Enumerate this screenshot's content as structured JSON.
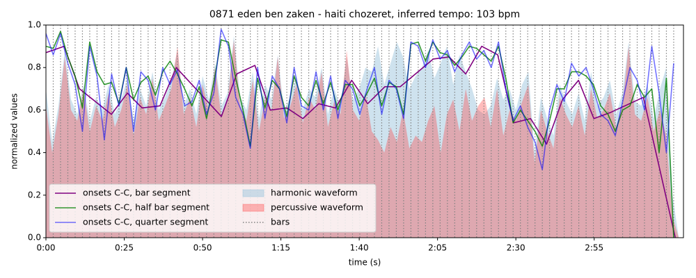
{
  "chart_data": {
    "type": "line",
    "title": "0871 eden ben zaken - haiti chozeret, inferred tempo: 103 bpm",
    "xlabel": "time (s)",
    "ylabel": "normalized values",
    "xlim": [
      0,
      203.5
    ],
    "ylim": [
      0,
      1
    ],
    "xticks": [
      {
        "value": 0,
        "label": "0:00"
      },
      {
        "value": 25,
        "label": "0:25"
      },
      {
        "value": 50,
        "label": "0:50"
      },
      {
        "value": 75,
        "label": "1:15"
      },
      {
        "value": 100,
        "label": "1:40"
      },
      {
        "value": 125,
        "label": "2:05"
      },
      {
        "value": 150,
        "label": "2:30"
      },
      {
        "value": 175,
        "label": "2:55"
      }
    ],
    "yticks": [
      {
        "value": 0,
        "label": "0.0"
      },
      0.2,
      0.4,
      0.6,
      0.8,
      {
        "value": 1,
        "label": "1.0"
      }
    ],
    "legend": "lower left",
    "x": [
      0,
      2.33,
      4.66,
      6.99,
      9.32,
      11.65,
      13.98,
      16.31,
      18.64,
      20.97,
      23.3,
      25.63,
      27.96,
      30.29,
      32.62,
      34.95,
      37.28,
      39.61,
      41.94,
      44.27,
      46.6,
      48.93,
      51.26,
      53.59,
      55.92,
      58.25,
      60.58,
      62.91,
      65.24,
      67.57,
      69.9,
      72.23,
      74.56,
      76.89,
      79.22,
      81.55,
      83.88,
      86.21,
      88.54,
      90.87,
      93.2,
      95.53,
      97.86,
      100.19,
      102.52,
      104.85,
      107.18,
      109.51,
      111.84,
      114.17,
      116.5,
      118.83,
      121.16,
      123.49,
      125.82,
      128.15,
      130.48,
      132.81,
      135.14,
      137.47,
      139.8,
      142.13,
      144.46,
      146.79,
      149.12,
      151.45,
      153.78,
      156.11,
      158.44,
      160.77,
      163.1,
      165.43,
      167.76,
      170.09,
      172.42,
      174.75,
      177.08,
      179.41,
      181.74,
      184.07,
      186.4,
      188.73,
      191.06,
      193.39,
      195.72,
      198.05,
      200.38
    ],
    "series": [
      {
        "name": "onsets C-C, bar segment",
        "type": "line",
        "color": "#800080",
        "opacity": 1,
        "x": [
          0,
          5.8,
          10.7,
          20.9,
          26,
          30.7,
          36.4,
          41.6,
          56,
          60.9,
          66.7,
          71.6,
          76.9,
          82,
          87.1,
          92.4,
          97.6,
          102.7,
          108.2,
          113.1,
          123.6,
          128.7,
          134,
          139.1,
          144.2,
          149.3,
          154.7,
          159.8,
          164.9,
          170,
          174.9,
          180.4,
          190.7,
          200.9
        ],
        "values": [
          0.87,
          0.9,
          0.7,
          0.58,
          0.68,
          0.61,
          0.62,
          0.8,
          0.57,
          0.77,
          0.81,
          0.6,
          0.61,
          0.56,
          0.63,
          0.61,
          0.74,
          0.63,
          0.71,
          0.71,
          0.84,
          0.85,
          0.77,
          0.9,
          0.86,
          0.54,
          0.56,
          0.44,
          0.65,
          0.74,
          0.56,
          0.59,
          0.66,
          0.0
        ]
      },
      {
        "name": "onsets C-C, half bar segment",
        "type": "line",
        "color": "#008000",
        "opacity": 0.8,
        "values": [
          0.9,
          0.89,
          0.97,
          0.85,
          0.76,
          0.61,
          0.92,
          0.78,
          0.72,
          0.73,
          0.63,
          0.8,
          0.65,
          0.73,
          0.76,
          0.67,
          0.78,
          0.83,
          0.77,
          0.7,
          0.62,
          0.71,
          0.56,
          0.73,
          0.93,
          0.92,
          0.75,
          0.6,
          0.43,
          0.75,
          0.61,
          0.74,
          0.7,
          0.57,
          0.76,
          0.66,
          0.62,
          0.74,
          0.63,
          0.73,
          0.6,
          0.72,
          0.72,
          0.62,
          0.68,
          0.75,
          0.62,
          0.73,
          0.71,
          0.58,
          0.91,
          0.92,
          0.83,
          0.92,
          0.87,
          0.86,
          0.81,
          0.85,
          0.9,
          0.89,
          0.86,
          0.83,
          0.9,
          0.75,
          0.54,
          0.6,
          0.55,
          0.5,
          0.43,
          0.55,
          0.7,
          0.7,
          0.78,
          0.78,
          0.76,
          0.72,
          0.62,
          0.58,
          0.5,
          0.6,
          0.62,
          0.72,
          0.66,
          0.7,
          0.4,
          0.75,
          0.0
        ]
      },
      {
        "name": "onsets C-C, quarter segment",
        "type": "line",
        "color": "#0000ff",
        "opacity": 0.55,
        "values": [
          0.96,
          0.86,
          0.96,
          0.82,
          0.72,
          0.5,
          0.9,
          0.76,
          0.46,
          0.77,
          0.62,
          0.8,
          0.5,
          0.78,
          0.74,
          0.6,
          0.8,
          0.72,
          0.79,
          0.62,
          0.64,
          0.74,
          0.58,
          0.68,
          0.98,
          0.9,
          0.66,
          0.58,
          0.42,
          0.8,
          0.56,
          0.76,
          0.7,
          0.54,
          0.8,
          0.62,
          0.6,
          0.78,
          0.6,
          0.76,
          0.56,
          0.74,
          0.7,
          0.58,
          0.7,
          0.8,
          0.58,
          0.74,
          0.7,
          0.56,
          0.92,
          0.9,
          0.8,
          0.93,
          0.84,
          0.88,
          0.78,
          0.86,
          0.92,
          0.84,
          0.88,
          0.8,
          0.92,
          0.7,
          0.55,
          0.62,
          0.52,
          0.45,
          0.32,
          0.6,
          0.72,
          0.64,
          0.82,
          0.76,
          0.8,
          0.7,
          0.58,
          0.55,
          0.48,
          0.64,
          0.8,
          0.74,
          0.6,
          0.9,
          0.68,
          0.4,
          0.82
        ]
      },
      {
        "name": "harmonic waveform",
        "type": "area",
        "color": "#9ec6de",
        "opacity": 0.5,
        "x": [
          0,
          2,
          4,
          6,
          8,
          10,
          12,
          14,
          16,
          18,
          20,
          22,
          24,
          26,
          28,
          30,
          32,
          34,
          36,
          38,
          40,
          42,
          44,
          46,
          48,
          50,
          52,
          54,
          56,
          58,
          60,
          62,
          64,
          66,
          68,
          70,
          72,
          74,
          76,
          78,
          80,
          82,
          84,
          86,
          88,
          90,
          92,
          94,
          96,
          98,
          100,
          102,
          104,
          106,
          108,
          110,
          112,
          114,
          116,
          118,
          120,
          122,
          124,
          126,
          128,
          130,
          132,
          134,
          136,
          138,
          140,
          142,
          144,
          146,
          148,
          150,
          152,
          154,
          156,
          158,
          160,
          162,
          164,
          166,
          168,
          170,
          172,
          174,
          176,
          178,
          180,
          182,
          184,
          186,
          188,
          190,
          192,
          194,
          196,
          198,
          200,
          202
        ],
        "values": [
          0.7,
          0.45,
          0.62,
          0.88,
          0.65,
          0.58,
          0.72,
          0.55,
          0.66,
          0.6,
          0.72,
          0.58,
          0.65,
          0.75,
          0.55,
          0.7,
          0.62,
          0.78,
          0.6,
          0.66,
          0.74,
          0.88,
          0.62,
          0.7,
          0.58,
          0.76,
          0.65,
          0.82,
          0.62,
          0.68,
          0.95,
          0.66,
          0.6,
          0.78,
          0.56,
          0.72,
          0.65,
          0.86,
          0.6,
          0.66,
          0.76,
          0.6,
          0.7,
          0.66,
          0.8,
          0.58,
          0.7,
          0.62,
          0.85,
          0.65,
          0.7,
          0.8,
          0.78,
          0.9,
          0.72,
          0.82,
          0.92,
          0.85,
          0.7,
          0.76,
          0.8,
          0.88,
          0.75,
          0.82,
          0.9,
          0.72,
          0.86,
          0.78,
          0.7,
          0.6,
          0.58,
          0.62,
          0.75,
          0.65,
          0.7,
          0.6,
          0.72,
          0.78,
          0.4,
          0.66,
          0.56,
          0.48,
          0.72,
          0.64,
          0.58,
          0.68,
          0.55,
          0.78,
          0.62,
          0.66,
          0.74,
          0.58,
          0.68,
          0.92,
          0.64,
          0.62,
          0.72,
          0.56,
          0.7,
          0.8,
          0.2,
          0.0
        ]
      },
      {
        "name": "percussive waveform",
        "type": "area",
        "color": "#ff3030",
        "opacity": 0.32,
        "x": [
          0,
          2,
          4,
          6,
          8,
          10,
          12,
          14,
          16,
          18,
          20,
          22,
          24,
          26,
          28,
          30,
          32,
          34,
          36,
          38,
          40,
          42,
          44,
          46,
          48,
          50,
          52,
          54,
          56,
          58,
          60,
          62,
          64,
          66,
          68,
          70,
          72,
          74,
          76,
          78,
          80,
          82,
          84,
          86,
          88,
          90,
          92,
          94,
          96,
          98,
          100,
          102,
          104,
          106,
          108,
          110,
          112,
          114,
          116,
          118,
          120,
          122,
          124,
          126,
          128,
          130,
          132,
          134,
          136,
          138,
          140,
          142,
          144,
          146,
          148,
          150,
          152,
          154,
          156,
          158,
          160,
          162,
          164,
          166,
          168,
          170,
          172,
          174,
          176,
          178,
          180,
          182,
          184,
          186,
          188,
          190,
          192,
          194,
          196,
          198,
          200,
          202
        ],
        "values": [
          0.62,
          0.4,
          0.58,
          0.85,
          0.6,
          0.55,
          0.7,
          0.5,
          0.62,
          0.55,
          0.68,
          0.52,
          0.6,
          0.72,
          0.48,
          0.66,
          0.58,
          0.75,
          0.55,
          0.62,
          0.7,
          0.9,
          0.58,
          0.66,
          0.52,
          0.72,
          0.6,
          0.8,
          0.57,
          0.64,
          0.93,
          0.62,
          0.55,
          0.74,
          0.5,
          0.66,
          0.6,
          0.85,
          0.56,
          0.62,
          0.72,
          0.54,
          0.66,
          0.6,
          0.78,
          0.52,
          0.64,
          0.58,
          0.88,
          0.6,
          0.55,
          0.68,
          0.5,
          0.46,
          0.4,
          0.52,
          0.45,
          0.6,
          0.42,
          0.48,
          0.45,
          0.55,
          0.62,
          0.4,
          0.58,
          0.65,
          0.5,
          0.7,
          0.55,
          0.62,
          0.66,
          0.52,
          0.7,
          0.48,
          0.6,
          0.55,
          0.64,
          0.72,
          0.35,
          0.6,
          0.5,
          0.42,
          0.66,
          0.58,
          0.52,
          0.62,
          0.48,
          0.7,
          0.56,
          0.6,
          0.68,
          0.52,
          0.62,
          0.9,
          0.58,
          0.55,
          0.66,
          0.5,
          0.6,
          0.48,
          0.1,
          0.0
        ]
      },
      {
        "name": "bars",
        "type": "vline",
        "color": "#808080",
        "opacity": 1,
        "linestyle": "dotted",
        "x": [
          2.33,
          4.66,
          6.99,
          9.32,
          11.65,
          13.98,
          16.31,
          18.64,
          20.97,
          23.3,
          25.63,
          27.96,
          30.29,
          32.62,
          34.95,
          37.28,
          39.61,
          41.94,
          44.27,
          46.6,
          48.93,
          51.26,
          53.59,
          55.92,
          58.25,
          60.58,
          62.91,
          65.24,
          67.57,
          69.9,
          72.23,
          74.56,
          76.89,
          79.22,
          81.55,
          83.88,
          86.21,
          88.54,
          90.87,
          93.2,
          95.53,
          97.86,
          100.19,
          102.52,
          104.85,
          107.18,
          109.51,
          111.84,
          114.17,
          116.5,
          118.83,
          121.16,
          123.49,
          125.82,
          128.15,
          130.48,
          132.81,
          135.14,
          137.47,
          139.8,
          142.13,
          144.46,
          146.79,
          149.12,
          151.45,
          153.78,
          156.11,
          158.44,
          160.77,
          163.1,
          165.43,
          167.76,
          170.09,
          172.42,
          174.75,
          177.08,
          179.41,
          181.74,
          184.07,
          186.4,
          188.73,
          191.06,
          193.39,
          195.72,
          198.05,
          200.38
        ]
      }
    ]
  }
}
